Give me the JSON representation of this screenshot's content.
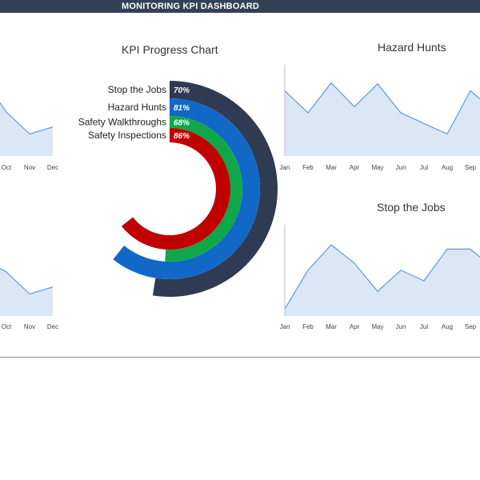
{
  "header": {
    "title": "MONITORING KPI DASHBOARD"
  },
  "colors": {
    "header_bg": "#334155",
    "area_fill": "#dbe7f5",
    "area_line": "#5b9bd5",
    "ring_track": "#ffffff"
  },
  "chart_data": [
    {
      "type": "radial-bar",
      "title": "KPI Progress Chart",
      "categories": [
        "Stop the Jobs",
        "Hazard Hunts",
        "Safety Walkthroughs",
        "Safety Inspections"
      ],
      "values": [
        70,
        81,
        68,
        86
      ],
      "value_labels": [
        "70%",
        "81%",
        "68%",
        "86%"
      ],
      "unit": "%",
      "colors": [
        "#2f3b52",
        "#1168c7",
        "#10a64a",
        "#c00000"
      ]
    },
    {
      "type": "area",
      "title": "Hazard Hunts",
      "categories": [
        "Jan",
        "Feb",
        "Mar",
        "Apr",
        "May",
        "Jun",
        "Jul",
        "Aug",
        "Sep"
      ],
      "values": [
        7.4,
        4.9,
        8.3,
        5.6,
        8.2,
        4.9,
        3.7,
        2.5,
        7.4
      ],
      "ylim": [
        0,
        10
      ]
    },
    {
      "type": "area",
      "title": "Stop the Jobs",
      "categories": [
        "Jan",
        "Feb",
        "Mar",
        "Apr",
        "May",
        "Jun",
        "Jul",
        "Aug",
        "Sep"
      ],
      "values": [
        0.8,
        5.2,
        8.1,
        6.0,
        2.8,
        5.2,
        4.0,
        7.6,
        7.6
      ],
      "ylim": [
        0,
        10
      ]
    },
    {
      "type": "area",
      "title": "",
      "categories": [
        "Oct",
        "Nov",
        "Dec"
      ],
      "values": [
        5.0,
        2.5,
        3.3
      ],
      "ylim": [
        0,
        10
      ]
    },
    {
      "type": "area",
      "title": "",
      "categories": [
        "Oct",
        "Nov",
        "Dec"
      ],
      "values": [
        5.0,
        2.5,
        3.3
      ],
      "ylim": [
        0,
        10
      ]
    }
  ]
}
